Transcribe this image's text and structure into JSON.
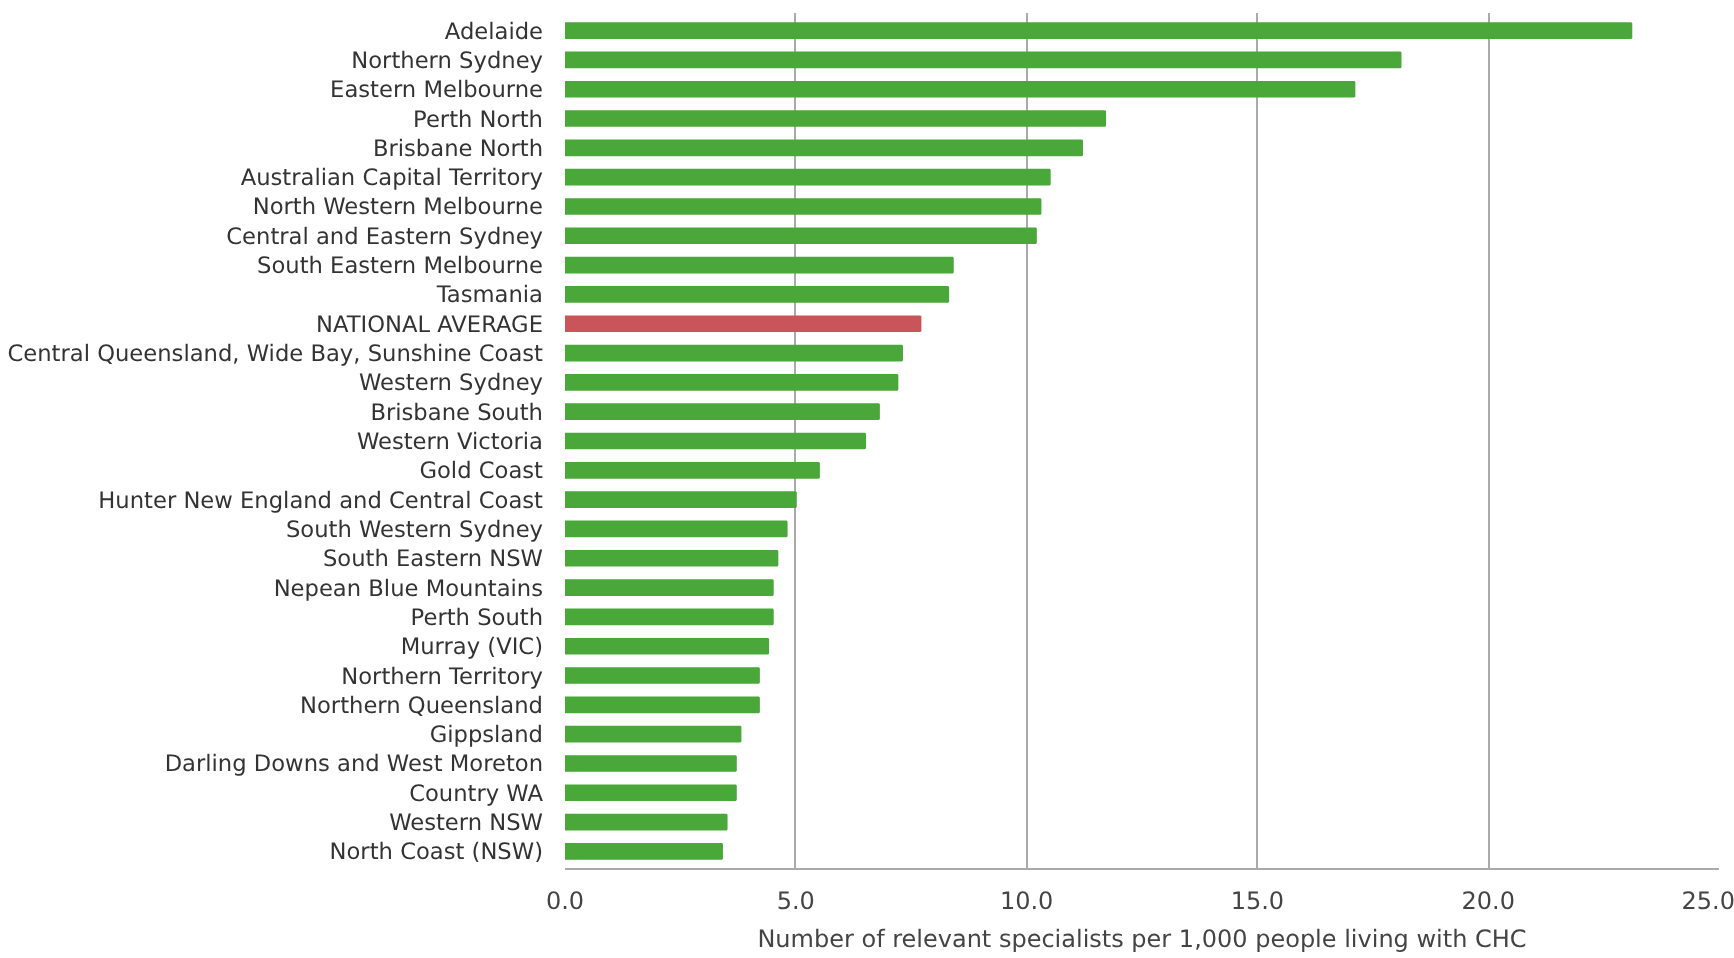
{
  "chart_data": {
    "type": "bar",
    "orientation": "horizontal",
    "categories": [
      "Adelaide",
      "Northern Sydney",
      "Eastern Melbourne",
      "Perth North",
      "Brisbane North",
      "Australian Capital Territory",
      "North Western Melbourne",
      "Central and Eastern Sydney",
      "South Eastern Melbourne",
      "Tasmania",
      "NATIONAL AVERAGE",
      "Central Queensland, Wide Bay, Sunshine Coast",
      "Western Sydney",
      "Brisbane South",
      "Western Victoria",
      "Gold Coast",
      "Hunter New England and Central Coast",
      "South Western Sydney",
      "South Eastern NSW",
      "Nepean Blue Mountains",
      "Perth South",
      "Murray (VIC)",
      "Northern Territory",
      "Northern Queensland",
      "Gippsland",
      "Darling Downs and West Moreton",
      "Country WA",
      "Western NSW",
      "North Coast (NSW)"
    ],
    "values": [
      23.1,
      18.1,
      17.1,
      11.7,
      11.2,
      10.5,
      10.3,
      10.2,
      8.4,
      8.3,
      7.7,
      7.3,
      7.2,
      6.8,
      6.5,
      5.5,
      5.0,
      4.8,
      4.6,
      4.5,
      4.5,
      4.4,
      4.2,
      4.2,
      3.8,
      3.7,
      3.7,
      3.5,
      3.4
    ],
    "colors": [
      "#4aa83a",
      "#4aa83a",
      "#4aa83a",
      "#4aa83a",
      "#4aa83a",
      "#4aa83a",
      "#4aa83a",
      "#4aa83a",
      "#4aa83a",
      "#4aa83a",
      "#c9545a",
      "#4aa83a",
      "#4aa83a",
      "#4aa83a",
      "#4aa83a",
      "#4aa83a",
      "#4aa83a",
      "#4aa83a",
      "#4aa83a",
      "#4aa83a",
      "#4aa83a",
      "#4aa83a",
      "#4aa83a",
      "#4aa83a",
      "#4aa83a",
      "#4aa83a",
      "#4aa83a",
      "#4aa83a",
      "#4aa83a"
    ],
    "xlabel": "Number of relevant specialists per 1,000 people living with CHC",
    "xlim": [
      0,
      25
    ],
    "xticks": [
      {
        "value": 0,
        "label": "0.0"
      },
      {
        "value": 5,
        "label": "5.0"
      },
      {
        "value": 10,
        "label": "10.0"
      },
      {
        "value": 15,
        "label": "15.0"
      },
      {
        "value": 20,
        "label": "20.0"
      },
      {
        "value": 25,
        "label": "25.0"
      }
    ],
    "grid": "x"
  }
}
